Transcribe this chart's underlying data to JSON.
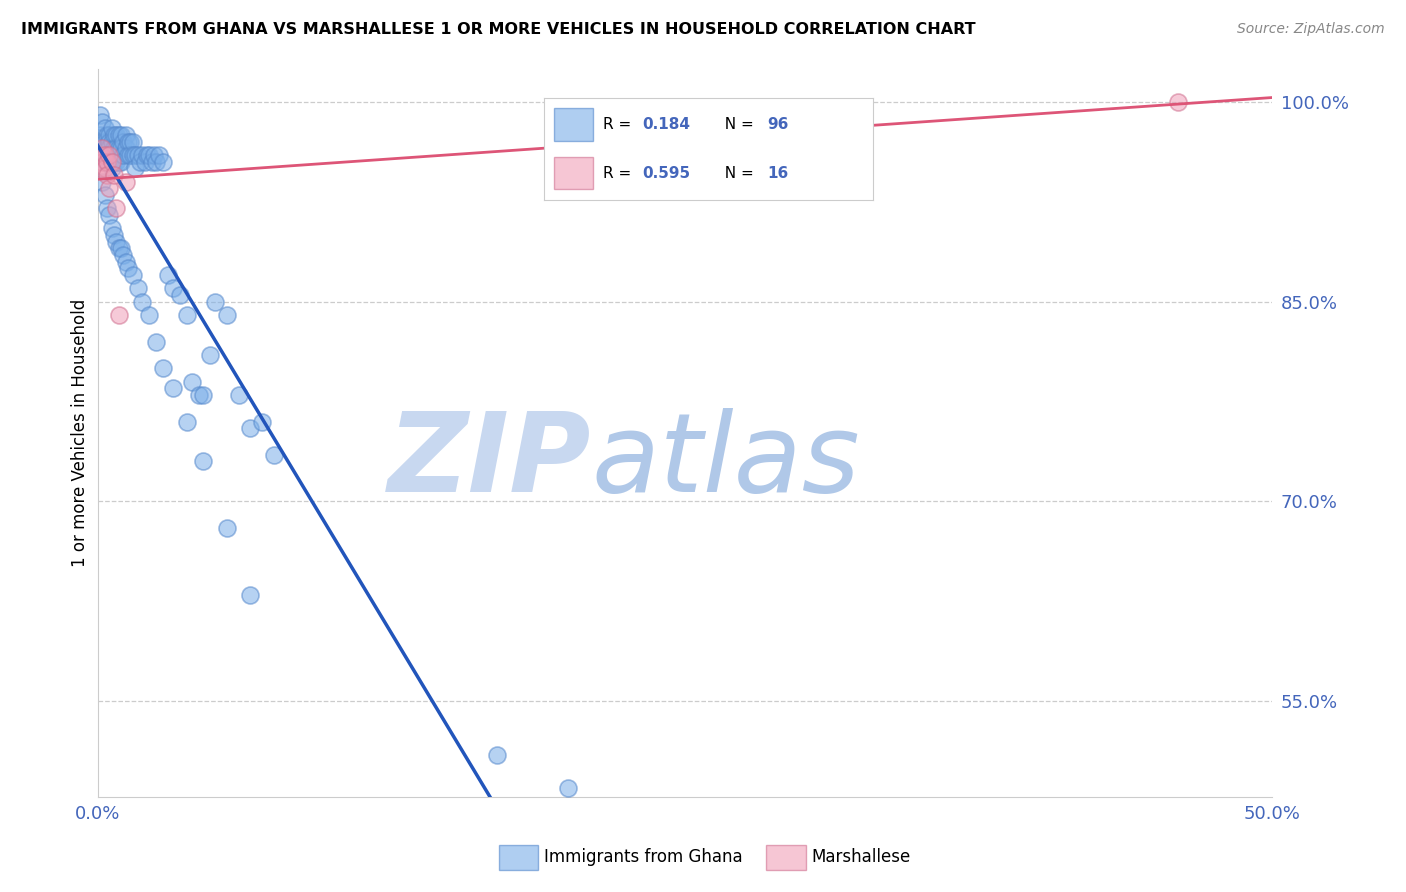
{
  "title": "IMMIGRANTS FROM GHANA VS MARSHALLESE 1 OR MORE VEHICLES IN HOUSEHOLD CORRELATION CHART",
  "source": "Source: ZipAtlas.com",
  "ylabel": "1 or more Vehicles in Household",
  "xlim": [
    0.0,
    0.5
  ],
  "ylim": [
    0.478,
    1.025
  ],
  "xticks": [
    0.0,
    0.1,
    0.2,
    0.3,
    0.4,
    0.5
  ],
  "xticklabels": [
    "0.0%",
    "",
    "",
    "",
    "",
    "50.0%"
  ],
  "yticks_right": [
    1.0,
    0.85,
    0.7,
    0.55
  ],
  "yticklabels_right": [
    "100.0%",
    "85.0%",
    "70.0%",
    "55.0%"
  ],
  "ghana_color": "#7aaee8",
  "ghana_edge_color": "#5588cc",
  "marshallese_color": "#f0a0b8",
  "marshallese_edge_color": "#d07090",
  "ghana_trendline_color": "#2255bb",
  "marshallese_trendline_color": "#dd5577",
  "ghana_R": 0.184,
  "ghana_N": 96,
  "marshallese_R": 0.595,
  "marshallese_N": 16,
  "legend_labels": [
    "Immigrants from Ghana",
    "Marshallese"
  ],
  "background_color": "#ffffff",
  "grid_color": "#cccccc",
  "watermark_zip_color": "#c8d8f0",
  "watermark_atlas_color": "#b0c8e8",
  "tick_color": "#4466bb",
  "ghana_x": [
    0.001,
    0.001,
    0.002,
    0.002,
    0.002,
    0.003,
    0.003,
    0.003,
    0.003,
    0.003,
    0.004,
    0.004,
    0.004,
    0.004,
    0.005,
    0.005,
    0.005,
    0.005,
    0.006,
    0.006,
    0.006,
    0.006,
    0.007,
    0.007,
    0.007,
    0.008,
    0.008,
    0.008,
    0.009,
    0.009,
    0.009,
    0.01,
    0.01,
    0.01,
    0.011,
    0.011,
    0.012,
    0.012,
    0.013,
    0.013,
    0.014,
    0.014,
    0.015,
    0.015,
    0.016,
    0.016,
    0.017,
    0.018,
    0.019,
    0.02,
    0.021,
    0.022,
    0.023,
    0.024,
    0.025,
    0.026,
    0.028,
    0.03,
    0.032,
    0.035,
    0.038,
    0.04,
    0.043,
    0.045,
    0.048,
    0.05,
    0.055,
    0.06,
    0.065,
    0.07,
    0.075,
    0.002,
    0.003,
    0.004,
    0.005,
    0.006,
    0.007,
    0.008,
    0.009,
    0.01,
    0.011,
    0.012,
    0.013,
    0.015,
    0.017,
    0.019,
    0.022,
    0.025,
    0.028,
    0.032,
    0.038,
    0.045,
    0.055,
    0.065,
    0.17,
    0.2
  ],
  "ghana_y": [
    0.99,
    0.975,
    0.985,
    0.97,
    0.96,
    0.98,
    0.97,
    0.965,
    0.96,
    0.955,
    0.975,
    0.965,
    0.96,
    0.955,
    0.975,
    0.97,
    0.965,
    0.955,
    0.98,
    0.97,
    0.96,
    0.95,
    0.975,
    0.965,
    0.955,
    0.975,
    0.965,
    0.955,
    0.975,
    0.965,
    0.955,
    0.975,
    0.965,
    0.955,
    0.97,
    0.96,
    0.975,
    0.965,
    0.97,
    0.96,
    0.97,
    0.96,
    0.97,
    0.96,
    0.96,
    0.95,
    0.96,
    0.955,
    0.96,
    0.955,
    0.96,
    0.96,
    0.955,
    0.96,
    0.955,
    0.96,
    0.955,
    0.87,
    0.86,
    0.855,
    0.84,
    0.79,
    0.78,
    0.78,
    0.81,
    0.85,
    0.84,
    0.78,
    0.755,
    0.76,
    0.735,
    0.94,
    0.93,
    0.92,
    0.915,
    0.905,
    0.9,
    0.895,
    0.89,
    0.89,
    0.885,
    0.88,
    0.875,
    0.87,
    0.86,
    0.85,
    0.84,
    0.82,
    0.8,
    0.785,
    0.76,
    0.73,
    0.68,
    0.63,
    0.51,
    0.485
  ],
  "marshallese_x": [
    0.001,
    0.001,
    0.002,
    0.002,
    0.003,
    0.003,
    0.004,
    0.004,
    0.005,
    0.005,
    0.006,
    0.007,
    0.008,
    0.009,
    0.012,
    0.46
  ],
  "marshallese_y": [
    0.96,
    0.95,
    0.965,
    0.955,
    0.96,
    0.95,
    0.955,
    0.945,
    0.935,
    0.96,
    0.955,
    0.945,
    0.92,
    0.84,
    0.94,
    1.0
  ]
}
